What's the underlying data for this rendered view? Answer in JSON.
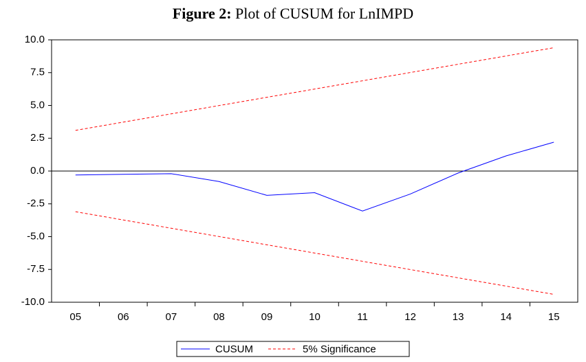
{
  "chart_data": {
    "type": "line",
    "title_label": "Figure 2:",
    "title": "Plot of CUSUM for LnIMPD",
    "categories": [
      "05",
      "06",
      "07",
      "08",
      "09",
      "10",
      "11",
      "12",
      "13",
      "14",
      "15"
    ],
    "series": [
      {
        "name": "CUSUM",
        "color": "#0000ff",
        "dashed": false,
        "values": [
          -0.3,
          -0.25,
          -0.2,
          -0.8,
          -1.85,
          -1.65,
          -3.05,
          -1.75,
          -0.15,
          1.15,
          2.2
        ]
      },
      {
        "name": "5% Significance",
        "color": "#ff0000",
        "dashed": true,
        "values": [
          3.1,
          3.73,
          4.36,
          4.99,
          5.62,
          6.25,
          6.88,
          7.51,
          8.14,
          8.77,
          9.4
        ],
        "lower": [
          -3.1,
          -3.73,
          -4.36,
          -4.99,
          -5.62,
          -6.25,
          -6.88,
          -7.51,
          -8.14,
          -8.77,
          -9.4
        ]
      }
    ],
    "ylim": [
      -10,
      10
    ],
    "yticks": [
      {
        "value": 10,
        "label": "10.0"
      },
      {
        "value": 7.5,
        "label": "7.5"
      },
      {
        "value": 5,
        "label": "5.0"
      },
      {
        "value": 2.5,
        "label": "2.5"
      },
      {
        "value": 0,
        "label": "0.0"
      },
      {
        "value": -2.5,
        "label": "-2.5"
      },
      {
        "value": -5,
        "label": "-5.0"
      },
      {
        "value": -7.5,
        "label": "-7.5"
      },
      {
        "value": -10,
        "label": "-10.0"
      }
    ],
    "legend": "bottom"
  }
}
